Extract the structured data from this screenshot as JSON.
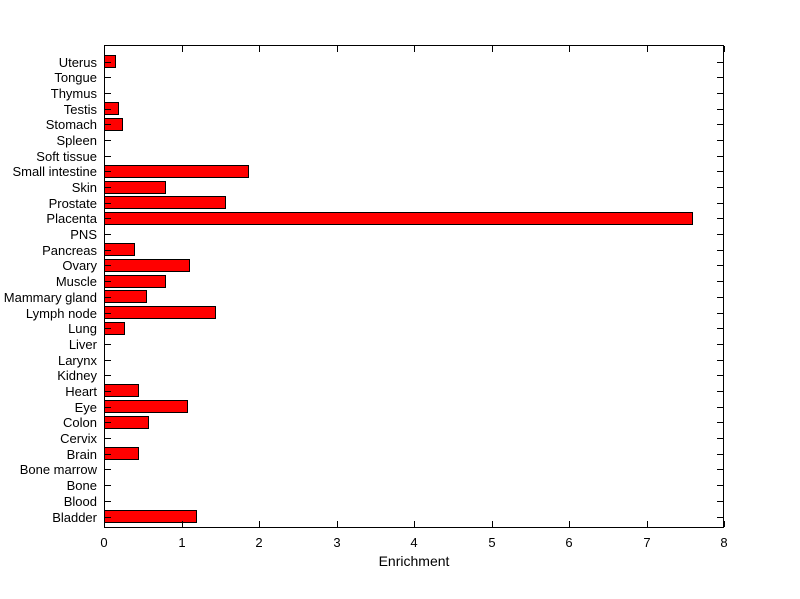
{
  "chart_data": {
    "type": "bar",
    "orientation": "horizontal",
    "title": "",
    "xlabel": "Enrichment",
    "ylabel": "",
    "xlim": [
      0,
      8
    ],
    "xticks": [
      0,
      1,
      2,
      3,
      4,
      5,
      6,
      7,
      8
    ],
    "grid": false,
    "legend": null,
    "bar_color": "#FF0000",
    "bar_edge_color": "#000000",
    "axis_color": "#000000",
    "background_color": "#FFFFFF",
    "categories": [
      "Uterus",
      "Tongue",
      "Thymus",
      "Testis",
      "Stomach",
      "Spleen",
      "Soft tissue",
      "Small intestine",
      "Skin",
      "Prostate",
      "Placenta",
      "PNS",
      "Pancreas",
      "Ovary",
      "Muscle",
      "Mammary gland",
      "Lymph node",
      "Lung",
      "Liver",
      "Larynx",
      "Kidney",
      "Heart",
      "Eye",
      "Colon",
      "Cervix",
      "Brain",
      "Bone marrow",
      "Bone",
      "Blood",
      "Bladder"
    ],
    "values": [
      0.15,
      0,
      0,
      0.19,
      0.24,
      0,
      0,
      1.87,
      0.8,
      1.57,
      7.6,
      0,
      0.4,
      1.11,
      0.8,
      0.56,
      1.44,
      0.27,
      0,
      0,
      0,
      0.45,
      1.09,
      0.58,
      0,
      0.45,
      0,
      0,
      0,
      1.2
    ]
  }
}
